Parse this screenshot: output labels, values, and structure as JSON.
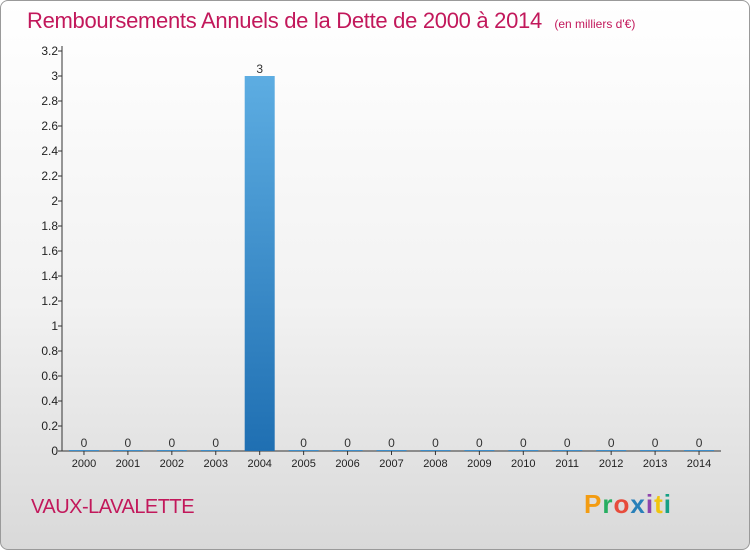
{
  "header": {
    "title": "Remboursements Annuels de la Dette de 2000 à 2014",
    "unit": "(en milliers d'€)"
  },
  "footer": {
    "commune": "VAUX-LAVALETTE",
    "logo_letters": [
      "P",
      "r",
      "o",
      "x",
      "i",
      "t",
      "i"
    ],
    "logo_colors": [
      "#f39c12",
      "#27ae60",
      "#e74c3c",
      "#2980b9",
      "#8e44ad",
      "#f1c40f",
      "#16a085"
    ]
  },
  "chart_data": {
    "type": "bar",
    "title": "Remboursements Annuels de la Dette de 2000 à 2014",
    "categories": [
      "2000",
      "2001",
      "2002",
      "2003",
      "2004",
      "2005",
      "2006",
      "2007",
      "2008",
      "2009",
      "2010",
      "2011",
      "2012",
      "2013",
      "2014"
    ],
    "values": [
      0,
      0,
      0,
      0,
      3,
      0,
      0,
      0,
      0,
      0,
      0,
      0,
      0,
      0,
      0
    ],
    "data_labels": [
      "0",
      "0",
      "0",
      "0",
      "3",
      "0",
      "0",
      "0",
      "0",
      "0",
      "0",
      "0",
      "0",
      "0",
      "0"
    ],
    "ylim": [
      0,
      3.2
    ],
    "yticks": [
      0,
      0.2,
      0.4,
      0.6,
      0.8,
      1,
      1.2,
      1.4,
      1.6,
      1.8,
      2,
      2.2,
      2.4,
      2.6,
      2.8,
      3,
      3.2
    ],
    "ytick_labels": [
      "0",
      "0.2",
      "0.4",
      "0.6",
      "0.8",
      "1",
      "1.2",
      "1.4",
      "1.6",
      "1.8",
      "2",
      "2.2",
      "2.4",
      "2.6",
      "2.8",
      "3",
      "3.2"
    ],
    "bar_color_top": "#5dade2",
    "bar_color_bottom": "#1f6fb2",
    "grid": false,
    "xlabel": "",
    "ylabel": ""
  }
}
